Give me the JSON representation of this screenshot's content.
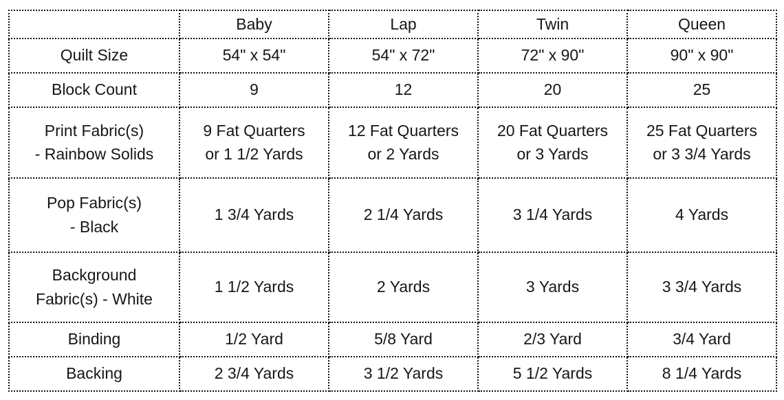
{
  "table": {
    "columns": [
      "",
      "Baby",
      "Lap",
      "Twin",
      "Queen"
    ],
    "rows": [
      {
        "label": "Quilt Size",
        "values": [
          "54\" x 54\"",
          "54\" x 72\"",
          "72\" x 90\"",
          "90\" x 90\""
        ]
      },
      {
        "label": "Block Count",
        "values": [
          "9",
          "12",
          "20",
          "25"
        ]
      },
      {
        "label": "Print Fabric(s)\n- Rainbow Solids",
        "values": [
          "9 Fat Quarters\nor 1 1/2 Yards",
          "12 Fat Quarters\nor 2 Yards",
          "20 Fat Quarters\nor 3 Yards",
          "25 Fat Quarters\nor 3 3/4 Yards"
        ]
      },
      {
        "label": "Pop Fabric(s)\n- Black",
        "values": [
          "1 3/4 Yards",
          "2 1/4 Yards",
          "3 1/4 Yards",
          "4 Yards"
        ]
      },
      {
        "label": "Background\nFabric(s) - White",
        "values": [
          "1 1/2 Yards",
          "2 Yards",
          "3 Yards",
          "3 3/4 Yards"
        ]
      },
      {
        "label": "Binding",
        "values": [
          "1/2 Yard",
          "5/8 Yard",
          "2/3 Yard",
          "3/4 Yard"
        ]
      },
      {
        "label": "Backing",
        "values": [
          "2 3/4 Yards",
          "3 1/2 Yards",
          "5 1/2 Yards",
          "8 1/4 Yards"
        ]
      }
    ]
  },
  "colors": {
    "border": "#111111",
    "text": "#161616",
    "background": "#ffffff"
  }
}
